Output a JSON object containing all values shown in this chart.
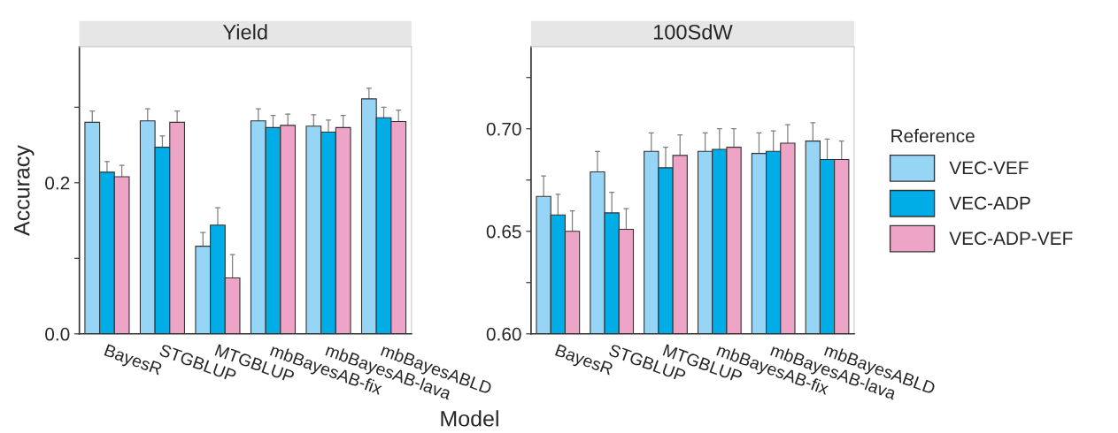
{
  "chart_data": [
    {
      "type": "bar",
      "title": "Yield",
      "xlabel": "Model",
      "ylabel": "Accuracy",
      "categories": [
        "BayesR",
        "STGBLUP",
        "MTGBLUP",
        "mbBayesAB-fix",
        "mbBayesAB-lava",
        "mbBayesABLD"
      ],
      "ylim": [
        0,
        0.38
      ],
      "yticks": [
        {
          "value": 0.0,
          "label": "0.0"
        },
        {
          "value": 0.1,
          "label": null
        },
        {
          "value": 0.2,
          "label": "0.2"
        },
        {
          "value": 0.3,
          "label": null
        }
      ],
      "grid": false,
      "series": [
        {
          "color": "#97d5f6",
          "values": [
            0.28,
            0.282,
            0.116,
            0.282,
            0.275,
            0.311
          ],
          "errors": [
            [
              0.28,
              0.295
            ],
            [
              0.282,
              0.298
            ],
            [
              0.116,
              0.134
            ],
            [
              0.282,
              0.298
            ],
            [
              0.275,
              0.29
            ],
            [
              0.311,
              0.325
            ]
          ]
        },
        {
          "color": "#00ade6",
          "values": [
            0.214,
            0.247,
            0.144,
            0.273,
            0.267,
            0.286
          ],
          "errors": [
            [
              0.214,
              0.228
            ],
            [
              0.247,
              0.262
            ],
            [
              0.144,
              0.167
            ],
            [
              0.273,
              0.289
            ],
            [
              0.267,
              0.283
            ],
            [
              0.286,
              0.3
            ]
          ]
        },
        {
          "color": "#eea4c6",
          "values": [
            0.208,
            0.28,
            0.074,
            0.276,
            0.273,
            0.281
          ],
          "errors": [
            [
              0.208,
              0.223
            ],
            [
              0.28,
              0.295
            ],
            [
              0.074,
              0.105
            ],
            [
              0.276,
              0.291
            ],
            [
              0.273,
              0.289
            ],
            [
              0.281,
              0.296
            ]
          ]
        }
      ]
    },
    {
      "type": "bar",
      "title": "100SdW",
      "legend_title": "Reference",
      "categories": [
        "BayesR",
        "STGBLUP",
        "MTGBLUP",
        "mbBayesAB-fix",
        "mbBayesAB-lava",
        "mbBayesABLD"
      ],
      "ylim": [
        0.6,
        0.74
      ],
      "yticks": [
        {
          "value": 0.6,
          "label": "0.60"
        },
        {
          "value": 0.625,
          "label": null
        },
        {
          "value": 0.65,
          "label": "0.65"
        },
        {
          "value": 0.675,
          "label": null
        },
        {
          "value": 0.7,
          "label": "0.70"
        },
        {
          "value": 0.725,
          "label": null
        }
      ],
      "grid": false,
      "legend": "right",
      "series": [
        {
          "name": "VEC-VEF",
          "color": "#97d5f6",
          "values": [
            0.667,
            0.679,
            0.689,
            0.689,
            0.688,
            0.694
          ],
          "errors": [
            [
              0.667,
              0.677
            ],
            [
              0.679,
              0.689
            ],
            [
              0.689,
              0.698
            ],
            [
              0.689,
              0.698
            ],
            [
              0.688,
              0.698
            ],
            [
              0.694,
              0.703
            ]
          ]
        },
        {
          "name": "VEC-ADP",
          "color": "#00ade6",
          "values": [
            0.658,
            0.659,
            0.681,
            0.69,
            0.689,
            0.685
          ],
          "errors": [
            [
              0.658,
              0.668
            ],
            [
              0.659,
              0.669
            ],
            [
              0.681,
              0.691
            ],
            [
              0.69,
              0.7
            ],
            [
              0.689,
              0.699
            ],
            [
              0.685,
              0.695
            ]
          ]
        },
        {
          "name": "VEC-ADP-VEF",
          "color": "#eea4c6",
          "values": [
            0.65,
            0.651,
            0.687,
            0.691,
            0.693,
            0.685
          ],
          "errors": [
            [
              0.65,
              0.66
            ],
            [
              0.651,
              0.661
            ],
            [
              0.687,
              0.697
            ],
            [
              0.691,
              0.7
            ],
            [
              0.693,
              0.702
            ],
            [
              0.685,
              0.694
            ]
          ]
        }
      ]
    }
  ]
}
